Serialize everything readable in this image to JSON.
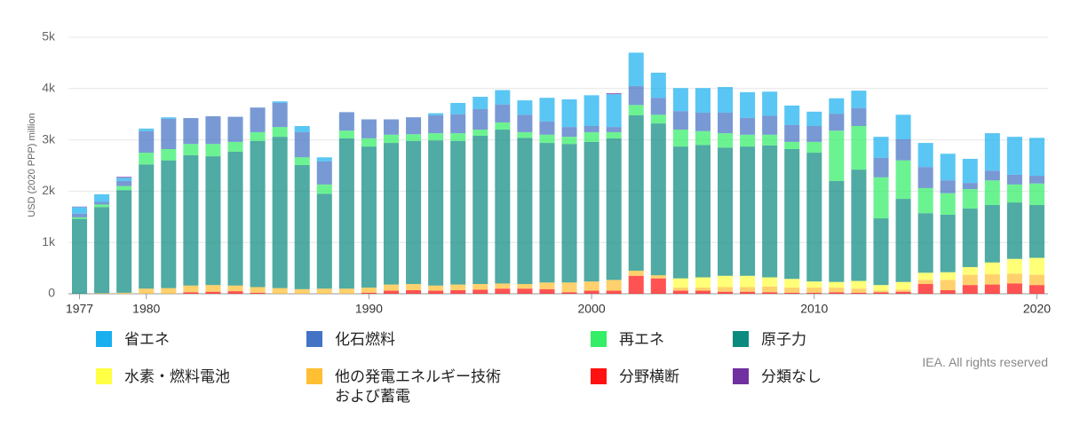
{
  "chart_data": {
    "type": "stacked_bar",
    "y_label": "USD (2020 PPP) million",
    "source": "IEA. All rights reserved",
    "x": [
      1977,
      1978,
      1979,
      1980,
      1981,
      1982,
      1983,
      1984,
      1985,
      1986,
      1987,
      1988,
      1989,
      1990,
      1991,
      1992,
      1993,
      1994,
      1995,
      1996,
      1997,
      1998,
      1999,
      2000,
      2001,
      2002,
      2003,
      2004,
      2005,
      2006,
      2007,
      2008,
      2009,
      2010,
      2011,
      2012,
      2013,
      2014,
      2015,
      2016,
      2017,
      2018,
      2019,
      2020
    ],
    "xlim": [
      1976.5,
      2020.5
    ],
    "xticks": [
      1977,
      1980,
      1990,
      2000,
      2010,
      2020
    ],
    "ylim": [
      0,
      5000
    ],
    "yticks": [
      0,
      {
        "value": 1000,
        "label": "1k"
      },
      {
        "value": 2000,
        "label": "2k"
      },
      {
        "value": 3000,
        "label": "3k"
      },
      {
        "value": 4000,
        "label": "4k"
      },
      {
        "value": 5000,
        "label": "5k"
      }
    ],
    "grid": true,
    "series": [
      {
        "name": "省エネ",
        "color": "#1ab0f0",
        "values": [
          130,
          150,
          60,
          50,
          30,
          0,
          0,
          0,
          0,
          30,
          120,
          80,
          0,
          0,
          0,
          0,
          40,
          220,
          240,
          280,
          280,
          460,
          540,
          600,
          640,
          650,
          490,
          450,
          480,
          500,
          500,
          470,
          380,
          280,
          300,
          340,
          410,
          480,
          470,
          520,
          470,
          730,
          740,
          740
        ]
      },
      {
        "name": "化石燃料",
        "color": "#4472c4",
        "values": [
          70,
          50,
          100,
          420,
          590,
          505,
          540,
          490,
          480,
          470,
          490,
          450,
          360,
          370,
          300,
          330,
          350,
          370,
          400,
          350,
          340,
          260,
          190,
          120,
          100,
          370,
          330,
          360,
          360,
          400,
          330,
          370,
          330,
          310,
          330,
          350,
          380,
          410,
          410,
          250,
          120,
          190,
          190,
          150
        ]
      },
      {
        "name": "再エネ",
        "color": "#33ee66",
        "values": [
          30,
          50,
          80,
          230,
          220,
          220,
          240,
          190,
          170,
          190,
          150,
          180,
          150,
          160,
          160,
          130,
          140,
          150,
          120,
          140,
          110,
          160,
          140,
          190,
          120,
          200,
          170,
          330,
          270,
          280,
          230,
          210,
          140,
          210,
          980,
          850,
          800,
          750,
          490,
          420,
          380,
          480,
          350,
          420
        ]
      },
      {
        "name": "原子力",
        "color": "#0b8a80",
        "values": [
          1460,
          1680,
          2000,
          2420,
          2490,
          2540,
          2510,
          2610,
          2850,
          2950,
          2420,
          1850,
          2930,
          2750,
          2760,
          2790,
          2830,
          2800,
          2890,
          3000,
          2850,
          2720,
          2700,
          2720,
          2760,
          3030,
          2960,
          2570,
          2580,
          2500,
          2520,
          2570,
          2530,
          2510,
          1970,
          2170,
          1300,
          1620,
          1160,
          1120,
          1140,
          1120,
          1100,
          1030
        ]
      },
      {
        "name": "水素・燃料電池",
        "color": "#ffff44",
        "values": [
          0,
          0,
          0,
          0,
          0,
          0,
          0,
          0,
          0,
          0,
          0,
          0,
          0,
          0,
          0,
          0,
          0,
          0,
          0,
          0,
          0,
          0,
          0,
          0,
          0,
          0,
          0,
          180,
          200,
          220,
          220,
          180,
          170,
          120,
          110,
          150,
          110,
          150,
          140,
          150,
          150,
          230,
          290,
          330
        ]
      },
      {
        "name": "他の発電エネルギー技術\nおよび蓄電",
        "color": "#ffbf33",
        "values": [
          0,
          10,
          20,
          100,
          110,
          130,
          130,
          110,
          110,
          110,
          90,
          100,
          100,
          100,
          120,
          120,
          100,
          110,
          110,
          100,
          90,
          130,
          190,
          180,
          210,
          100,
          60,
          60,
          60,
          90,
          90,
          110,
          100,
          100,
          90,
          80,
          30,
          40,
          80,
          200,
          200,
          200,
          190,
          200
        ]
      },
      {
        "name": "分野横断",
        "color": "#ff1111",
        "values": [
          0,
          0,
          0,
          0,
          0,
          30,
          40,
          50,
          20,
          0,
          0,
          0,
          0,
          20,
          60,
          70,
          60,
          70,
          80,
          100,
          100,
          90,
          30,
          60,
          60,
          350,
          300,
          60,
          60,
          40,
          40,
          30,
          20,
          20,
          30,
          20,
          30,
          40,
          190,
          70,
          170,
          180,
          200,
          170
        ]
      },
      {
        "name": "分類なし",
        "color": "#7030a0",
        "values": [
          10,
          0,
          20,
          0,
          0,
          0,
          0,
          0,
          0,
          0,
          0,
          0,
          0,
          0,
          0,
          0,
          0,
          0,
          0,
          0,
          0,
          0,
          0,
          0,
          20,
          0,
          0,
          0,
          0,
          0,
          0,
          0,
          0,
          0,
          0,
          0,
          0,
          0,
          0,
          0,
          0,
          0,
          0,
          0
        ]
      }
    ]
  }
}
